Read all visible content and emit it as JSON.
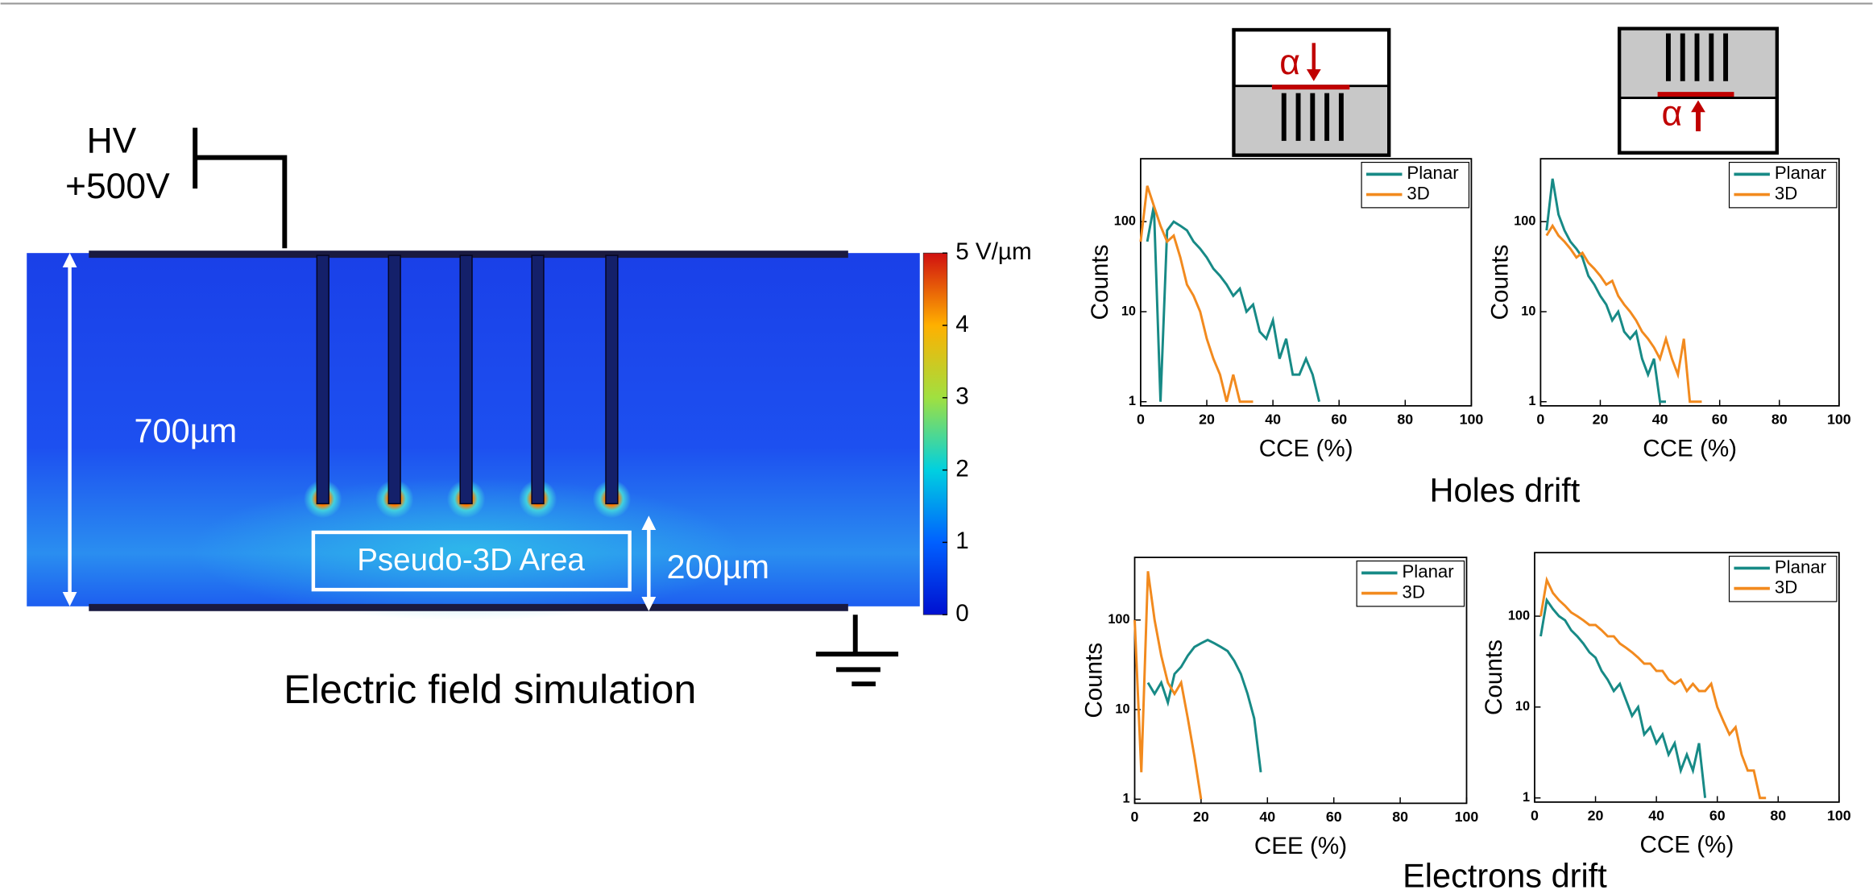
{
  "simulation": {
    "title": "Electric field simulation",
    "hv_label": "HV",
    "voltage": "+500V",
    "thickness": "700µm",
    "depth": "200µm",
    "area_label": "Pseudo-3D  Area",
    "colorbar": {
      "lim": [
        0,
        5
      ],
      "ticks": [
        0,
        1,
        2,
        3,
        4,
        {
          "value": 5,
          "label": "5 V/µm"
        }
      ]
    }
  },
  "insets": [
    {
      "symbol": "α"
    },
    {
      "symbol": "α"
    }
  ],
  "holes_title": "Holes drift",
  "electrons_title": "Electrons drift",
  "chart_data": [
    {
      "type": "line",
      "x_label": "CCE (%)",
      "y_label": "Counts",
      "log_y": true,
      "legend": "upper right",
      "xlim": [
        0,
        100
      ],
      "ylim": [
        0.9,
        500
      ],
      "xticks": [
        0,
        20,
        40,
        60,
        80,
        100
      ],
      "yticks": [
        1,
        10,
        100
      ],
      "x": [
        0,
        2,
        4,
        6,
        8,
        10,
        12,
        14,
        16,
        18,
        20,
        22,
        24,
        26,
        28,
        30,
        32,
        34,
        36,
        38,
        40,
        42,
        44,
        46,
        48,
        50,
        52,
        54,
        56
      ],
      "series": [
        {
          "name": "Planar",
          "color": "#178a86",
          "values": [
            null,
            60,
            150,
            1,
            80,
            100,
            90,
            80,
            60,
            50,
            40,
            30,
            25,
            20,
            15,
            18,
            10,
            12,
            6,
            5,
            8,
            3,
            5,
            2,
            2,
            3,
            2,
            1,
            null
          ]
        },
        {
          "name": "3D",
          "color": "#f28a1e",
          "values": [
            60,
            250,
            150,
            90,
            60,
            70,
            40,
            20,
            15,
            10,
            5,
            3,
            2,
            1,
            2,
            1,
            1,
            1,
            null,
            null,
            null,
            null,
            null,
            null,
            null,
            null,
            null,
            null,
            null
          ]
        }
      ]
    },
    {
      "type": "line",
      "x_label": "CCE (%)",
      "y_label": "Counts",
      "log_y": true,
      "legend": "upper right",
      "xlim": [
        0,
        100
      ],
      "ylim": [
        0.9,
        500
      ],
      "xticks": [
        0,
        20,
        40,
        60,
        80,
        100
      ],
      "yticks": [
        1,
        10,
        100
      ],
      "x": [
        0,
        2,
        4,
        6,
        8,
        10,
        12,
        14,
        16,
        18,
        20,
        22,
        24,
        26,
        28,
        30,
        32,
        34,
        36,
        38,
        40,
        42,
        44,
        46,
        48,
        50,
        52,
        54,
        56
      ],
      "series": [
        {
          "name": "Planar",
          "color": "#178a86",
          "values": [
            null,
            80,
            300,
            120,
            80,
            60,
            50,
            40,
            25,
            20,
            15,
            12,
            8,
            10,
            6,
            5,
            6,
            3,
            2,
            3,
            1,
            1,
            null,
            null,
            null,
            null,
            null,
            null,
            null
          ]
        },
        {
          "name": "3D",
          "color": "#f28a1e",
          "values": [
            null,
            70,
            90,
            70,
            60,
            50,
            40,
            45,
            35,
            30,
            25,
            20,
            22,
            15,
            12,
            10,
            8,
            6,
            5,
            4,
            3,
            5,
            3,
            2,
            5,
            1,
            1,
            1,
            null
          ]
        }
      ]
    },
    {
      "type": "line",
      "x_label": "CEE (%)",
      "y_label": "Counts",
      "log_y": true,
      "legend": "upper right",
      "xlim": [
        0,
        100
      ],
      "ylim": [
        0.9,
        500
      ],
      "xticks": [
        0,
        20,
        40,
        60,
        80,
        100
      ],
      "yticks": [
        1,
        10,
        100
      ],
      "x": [
        0,
        2,
        4,
        6,
        8,
        10,
        12,
        14,
        16,
        18,
        20,
        22,
        24,
        26,
        28,
        30,
        32,
        34,
        36,
        38,
        40
      ],
      "series": [
        {
          "name": "Planar",
          "color": "#178a86",
          "values": [
            null,
            null,
            20,
            15,
            20,
            12,
            25,
            30,
            40,
            50,
            55,
            60,
            55,
            50,
            45,
            35,
            25,
            15,
            8,
            2,
            null
          ]
        },
        {
          "name": "3D",
          "color": "#f28a1e",
          "values": [
            100,
            2,
            350,
            100,
            40,
            20,
            15,
            20,
            8,
            3,
            1,
            null,
            null,
            null,
            null,
            null,
            null,
            null,
            null,
            null,
            null
          ]
        }
      ]
    },
    {
      "type": "line",
      "x_label": "CCE (%)",
      "y_label": "Counts",
      "log_y": true,
      "legend": "upper right",
      "xlim": [
        0,
        100
      ],
      "ylim": [
        0.9,
        500
      ],
      "xticks": [
        0,
        20,
        40,
        60,
        80,
        100
      ],
      "yticks": [
        1,
        10,
        100
      ],
      "x": [
        0,
        2,
        4,
        6,
        8,
        10,
        12,
        14,
        16,
        18,
        20,
        22,
        24,
        26,
        28,
        30,
        32,
        34,
        36,
        38,
        40,
        42,
        44,
        46,
        48,
        50,
        52,
        54,
        56,
        58,
        60,
        62,
        64,
        66,
        68,
        70,
        72,
        74,
        76,
        78
      ],
      "series": [
        {
          "name": "Planar",
          "color": "#178a86",
          "values": [
            null,
            60,
            150,
            120,
            100,
            90,
            70,
            60,
            50,
            40,
            35,
            25,
            20,
            15,
            18,
            12,
            8,
            10,
            5,
            6,
            4,
            5,
            3,
            4,
            2,
            3,
            2,
            4,
            1,
            null,
            null,
            null,
            null,
            null,
            null,
            null,
            null,
            null,
            null,
            null
          ]
        },
        {
          "name": "3D",
          "color": "#f28a1e",
          "values": [
            null,
            100,
            250,
            180,
            150,
            130,
            110,
            100,
            90,
            80,
            80,
            70,
            60,
            60,
            50,
            45,
            40,
            35,
            30,
            30,
            25,
            25,
            20,
            18,
            20,
            15,
            18,
            15,
            15,
            18,
            10,
            7,
            5,
            6,
            3,
            2,
            2,
            1,
            1,
            null
          ]
        }
      ]
    }
  ]
}
